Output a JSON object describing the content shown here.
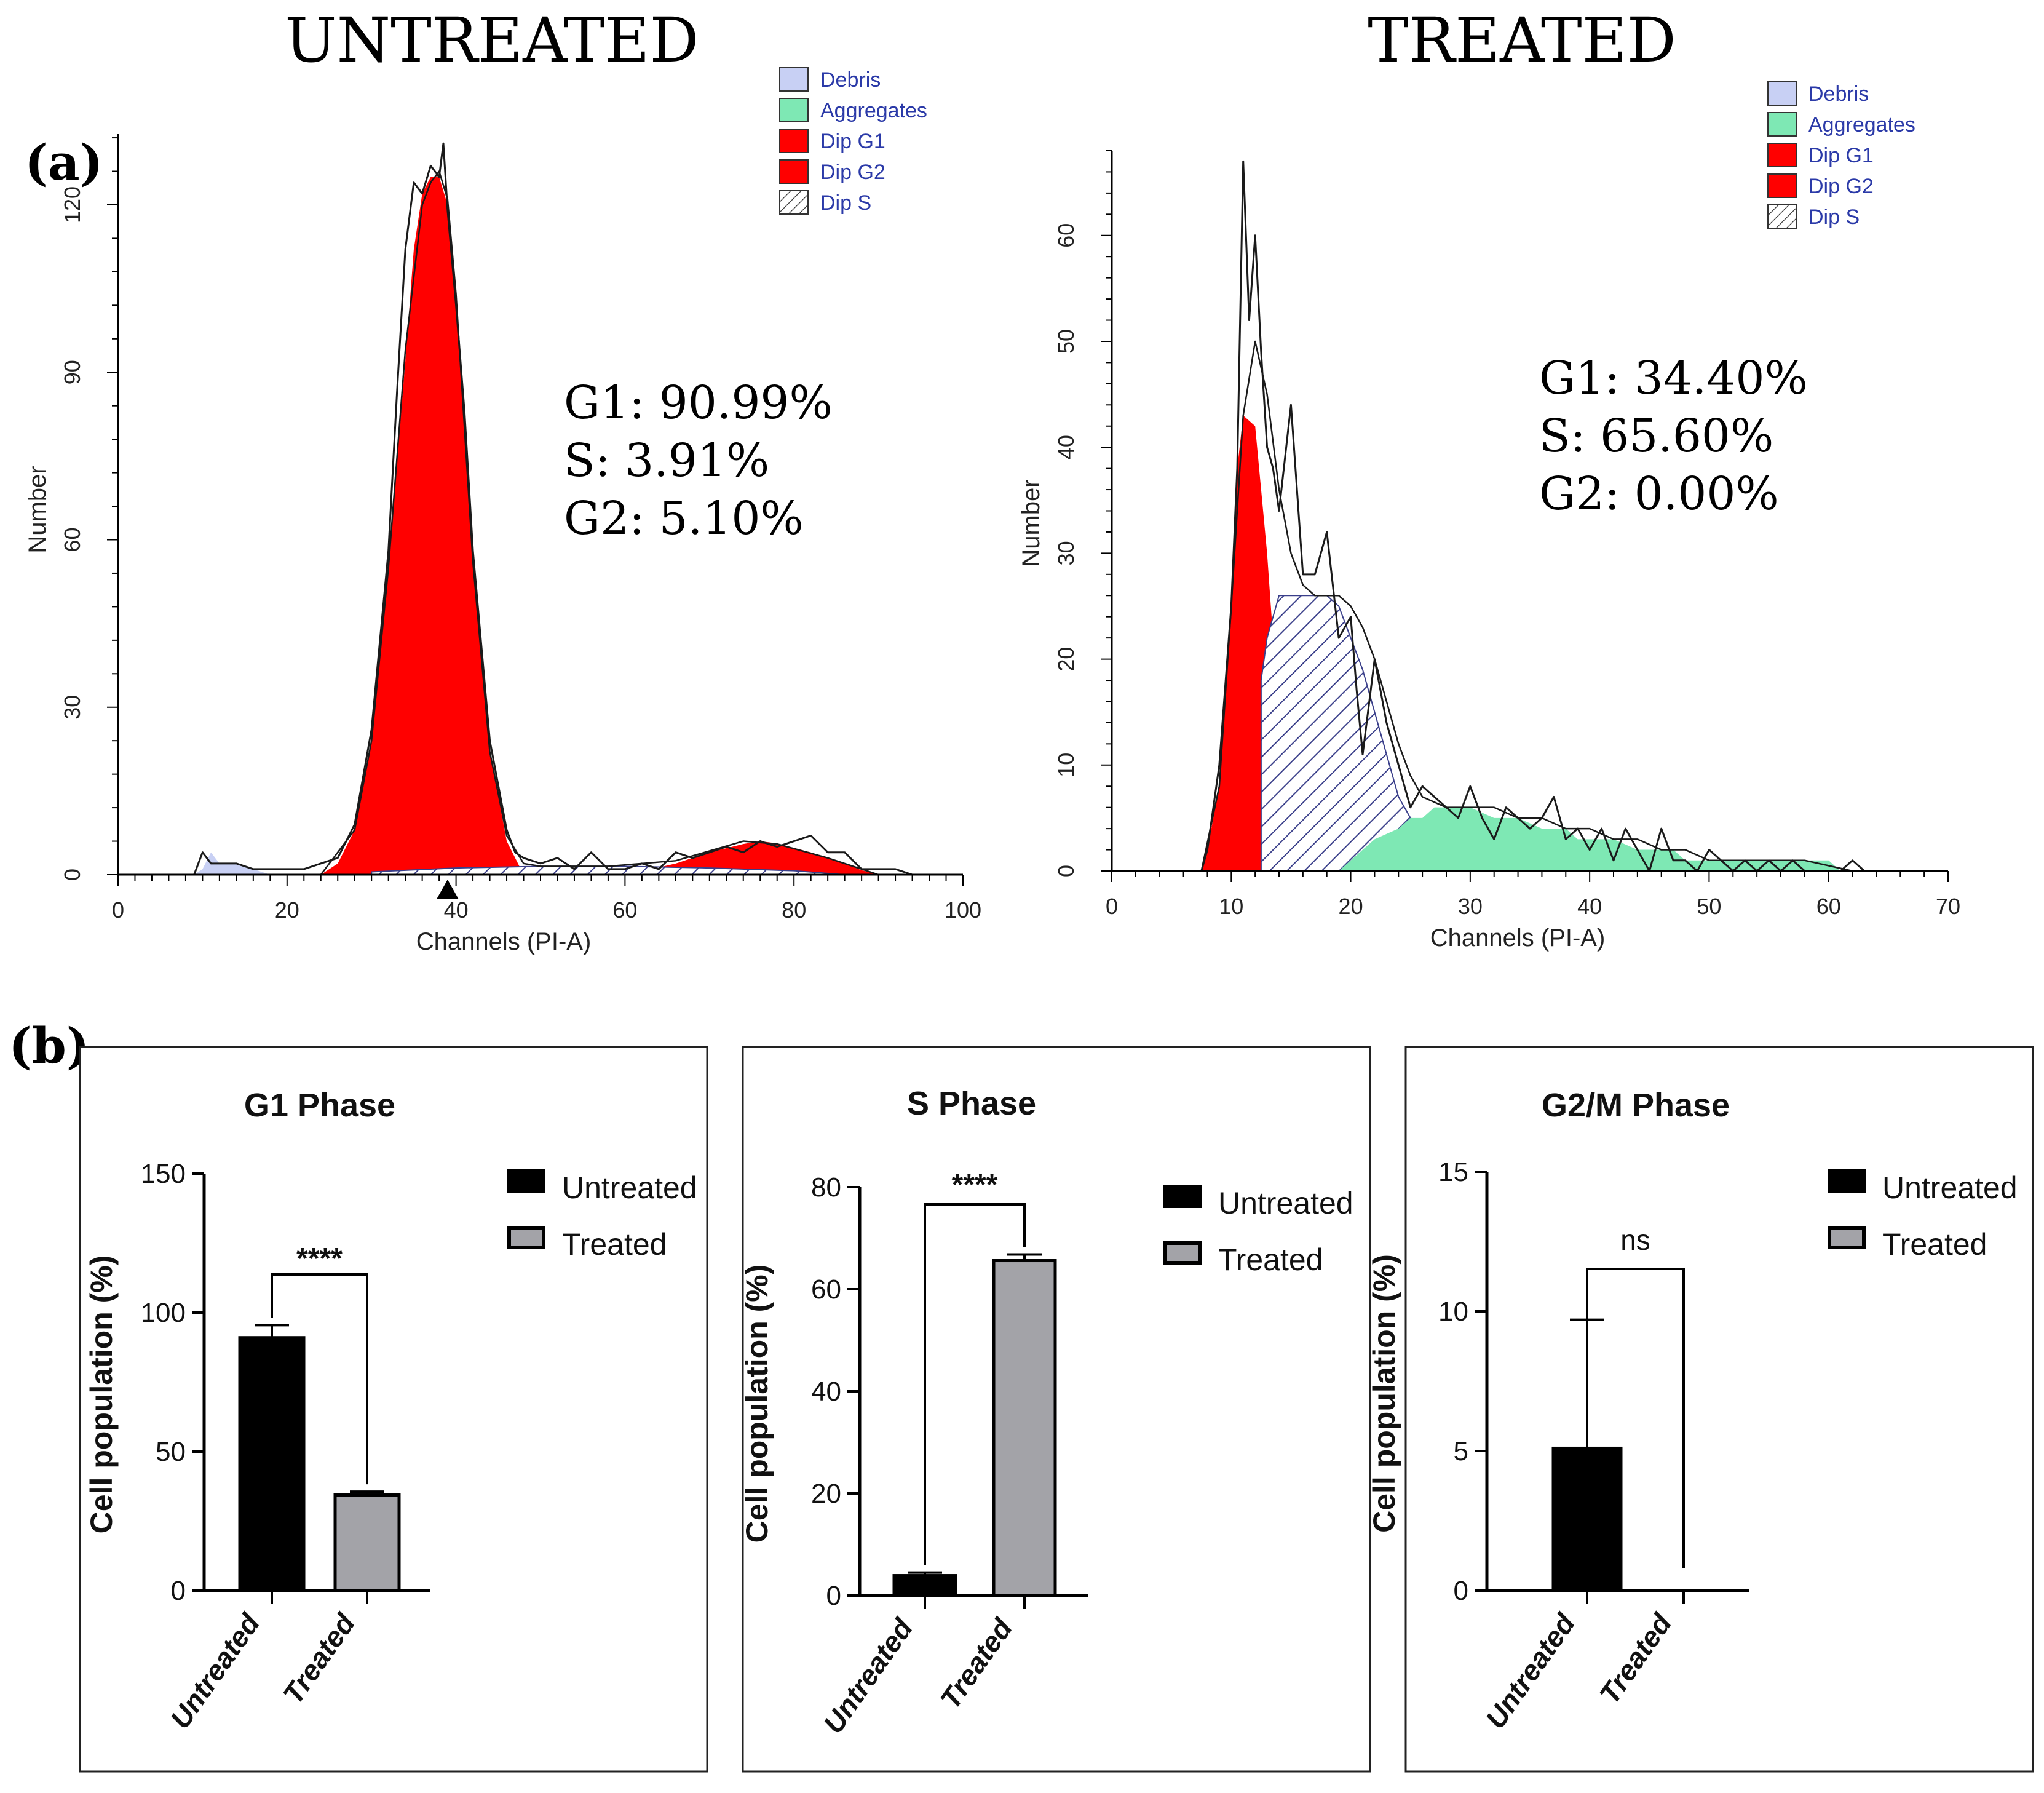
{
  "panel_labels": {
    "a": "(a)",
    "b": "(b)"
  },
  "colors": {
    "debris": "#c8d0f4",
    "aggregates": "#7ee8b4",
    "dip_g1": "#ff0000",
    "dip_g2": "#ff0000",
    "dip_s_hatch": "#3a3f8a",
    "legend_text": "#2b3aa8",
    "bar_untreated": "#000000",
    "bar_treated": "#a3a3a8"
  },
  "chart_data": [
    {
      "id": "untreated-histogram",
      "type": "area",
      "title": "UNTREATED",
      "xlabel": "Channels (PI-A)",
      "ylabel": "Number",
      "xlim": [
        0,
        100
      ],
      "ylim": [
        0,
        133
      ],
      "xticks": [
        0,
        20,
        40,
        60,
        80,
        100
      ],
      "yticks": [
        0,
        30,
        60,
        90,
        120
      ],
      "xtick_labels": [
        "0",
        "20",
        "40",
        "60",
        "80",
        "100"
      ],
      "ytick_labels": [
        "0",
        "30",
        "60",
        "90",
        "120"
      ],
      "legend": [
        "Debris",
        "Aggregates",
        "Dip G1",
        "Dip G2",
        "Dip S"
      ],
      "annotations": [
        "G1: 90.99%",
        "S: 3.91%",
        "G2: 5.10%"
      ],
      "marker_channel": 39,
      "series": [
        {
          "name": "Debris",
          "kind": "fill",
          "x": [
            9,
            10,
            11,
            12,
            14,
            16,
            18
          ],
          "y": [
            0,
            1,
            4,
            2,
            2,
            1,
            0
          ]
        },
        {
          "name": "Dip G1",
          "kind": "fill",
          "x": [
            24,
            26,
            28,
            30,
            32,
            34,
            35,
            36,
            37,
            38,
            39,
            40,
            41,
            42,
            44,
            46,
            48
          ],
          "y": [
            0,
            2,
            8,
            24,
            55,
            92,
            112,
            122,
            125,
            125,
            120,
            103,
            82,
            55,
            22,
            6,
            0
          ]
        },
        {
          "name": "Dip G2",
          "kind": "fill",
          "x": [
            58,
            62,
            66,
            70,
            74,
            76,
            78,
            82,
            86,
            88,
            90
          ],
          "y": [
            0,
            0.6,
            2,
            4,
            5.5,
            6,
            5.6,
            4,
            2,
            0.8,
            0
          ]
        },
        {
          "name": "Dip S",
          "kind": "fill",
          "x": [
            30,
            40,
            50,
            60,
            70,
            80,
            86
          ],
          "y": [
            0.5,
            1.2,
            1.5,
            1.5,
            1.2,
            0.7,
            0
          ]
        },
        {
          "name": "Data",
          "kind": "line",
          "x": [
            0,
            9,
            10,
            11,
            12,
            14,
            16,
            18,
            20,
            22,
            24,
            26,
            28,
            30,
            32,
            33,
            34,
            35,
            36,
            37,
            38,
            38.5,
            39,
            40,
            41,
            42,
            44,
            46,
            47,
            48,
            50,
            52,
            54,
            56,
            58,
            60,
            62,
            64,
            66,
            68,
            70,
            72,
            74,
            76,
            78,
            80,
            82,
            84,
            86,
            88,
            90,
            92,
            94,
            95
          ],
          "y": [
            0,
            0,
            4,
            2,
            2,
            2,
            1,
            1,
            1,
            1,
            2,
            3,
            9,
            26,
            58,
            86,
            112,
            124,
            122,
            127,
            125,
            131,
            119,
            102,
            83,
            58,
            24,
            8,
            4,
            3,
            2,
            3,
            1,
            4,
            1,
            1,
            2,
            1,
            4,
            3,
            4,
            5,
            4,
            6,
            5,
            6,
            7,
            4,
            4,
            1,
            1,
            1,
            0,
            0
          ]
        },
        {
          "name": "Model",
          "kind": "line",
          "x": [
            24,
            28,
            30,
            32,
            34,
            36,
            37,
            38,
            39,
            40,
            42,
            44,
            46,
            48,
            50,
            58,
            66,
            74,
            78,
            84,
            90
          ],
          "y": [
            0,
            8,
            24,
            55,
            94,
            120,
            124,
            126,
            121,
            104,
            56,
            22,
            7,
            2,
            1.5,
            1.5,
            2.5,
            6,
            5.5,
            3,
            0
          ]
        }
      ]
    },
    {
      "id": "treated-histogram",
      "type": "area",
      "title": "TREATED",
      "xlabel": "Channels (PI-A)",
      "ylabel": "Number",
      "xlim": [
        0,
        70
      ],
      "ylim": [
        0,
        68
      ],
      "xticks": [
        0,
        10,
        20,
        30,
        40,
        50,
        60,
        70
      ],
      "yticks": [
        0,
        10,
        20,
        30,
        40,
        50,
        60
      ],
      "xtick_labels": [
        "0",
        "10",
        "20",
        "30",
        "40",
        "50",
        "60",
        "70"
      ],
      "ytick_labels": [
        "0",
        "10",
        "20",
        "30",
        "40",
        "50",
        "60"
      ],
      "legend": [
        "Debris",
        "Aggregates",
        "Dip G1",
        "Dip G2",
        "Dip S"
      ],
      "annotations": [
        "G1: 34.40%",
        "S: 65.60%",
        "G2: 0.00%"
      ],
      "series": [
        {
          "name": "Dip G1",
          "kind": "fill",
          "x": [
            7.5,
            8,
            9,
            10,
            10.5,
            11,
            12,
            13,
            14,
            15,
            15.7
          ],
          "y": [
            0,
            2,
            8,
            25,
            38,
            43,
            42,
            30,
            14,
            4,
            0
          ]
        },
        {
          "name": "Dip S",
          "kind": "fill",
          "x": [
            12.5,
            13,
            14,
            14.5,
            15,
            16,
            17,
            18,
            19,
            20,
            21,
            22,
            23,
            24,
            25,
            26
          ],
          "y": [
            18,
            22,
            26,
            26,
            26,
            26,
            26,
            26,
            25,
            22,
            19,
            15,
            11,
            7,
            5,
            4
          ]
        },
        {
          "name": "Aggregates",
          "kind": "fill",
          "x": [
            19,
            20,
            21,
            22,
            24,
            25,
            26,
            27,
            28,
            29,
            30,
            32,
            33,
            34,
            36,
            37,
            38,
            39,
            40,
            42,
            44,
            46,
            47,
            48,
            50,
            52,
            54,
            56,
            57,
            58,
            59,
            60,
            61
          ],
          "y": [
            0,
            1,
            2,
            3,
            4,
            5,
            5,
            6,
            6,
            6,
            6,
            5,
            5,
            5,
            4,
            4,
            4,
            3,
            3,
            3,
            2,
            2,
            2,
            1,
            1,
            1,
            1,
            1,
            1,
            1,
            1,
            1,
            0
          ]
        },
        {
          "name": "Data",
          "kind": "line",
          "x": [
            0,
            7.5,
            8,
            9,
            10,
            10.5,
            11,
            11.5,
            12,
            12.5,
            13,
            13.5,
            14,
            15,
            16,
            17,
            18,
            19,
            20,
            20.5,
            21,
            22,
            23,
            24,
            25,
            26,
            27,
            28,
            29,
            30,
            31,
            32,
            33,
            34,
            35,
            36,
            37,
            38,
            39,
            40,
            41,
            42,
            43,
            44,
            45,
            46,
            47,
            48,
            49,
            50,
            51,
            52,
            53,
            54,
            55,
            56,
            57,
            58,
            59,
            60,
            61,
            62,
            63,
            64,
            65,
            66,
            67,
            68,
            69,
            70
          ],
          "y": [
            0,
            0,
            2,
            10,
            25,
            38,
            67,
            52,
            60,
            49,
            40,
            38,
            34,
            44,
            28,
            28,
            32,
            22,
            24,
            17,
            11,
            20,
            14,
            10,
            6,
            8,
            7,
            6,
            5,
            8,
            5,
            3,
            6,
            5,
            4,
            5,
            7,
            3,
            4,
            2,
            4,
            1,
            4,
            2,
            0,
            4,
            1,
            1,
            0,
            2,
            1,
            0,
            1,
            0,
            1,
            0,
            1,
            0,
            0,
            0,
            0,
            1,
            0,
            0,
            0,
            0,
            0,
            0,
            0,
            0
          ]
        },
        {
          "name": "Model",
          "kind": "line",
          "x": [
            7.5,
            9,
            10,
            11,
            12,
            13,
            14,
            15,
            16,
            17,
            18,
            19,
            20,
            21,
            22,
            23,
            24,
            25,
            26,
            28,
            30,
            32,
            34,
            36,
            38,
            40,
            42,
            44,
            46,
            48,
            50,
            52,
            54,
            56,
            58,
            60,
            62
          ],
          "y": [
            0,
            8,
            25,
            43,
            50,
            45,
            36,
            30,
            27,
            26,
            26,
            26,
            25,
            23,
            20,
            16,
            12,
            9,
            7,
            6,
            6,
            6,
            5,
            5,
            4,
            4,
            3,
            3,
            2,
            2,
            1,
            1,
            1,
            1,
            1,
            0.5,
            0
          ]
        }
      ]
    },
    {
      "id": "g1-phase-bars",
      "type": "bar",
      "title": "G1 Phase",
      "ylabel": "Cell population (%)",
      "categories": [
        "Untreated",
        "Treated"
      ],
      "values": [
        90.99,
        34.4
      ],
      "errors": [
        4.5,
        1.2
      ],
      "ylim": [
        0,
        150
      ],
      "yticks": [
        0,
        50,
        100,
        150
      ],
      "ytick_labels": [
        "0",
        "50",
        "100",
        "150"
      ],
      "legend": [
        "Untreated",
        "Treated"
      ],
      "significance": "****"
    },
    {
      "id": "s-phase-bars",
      "type": "bar",
      "title": "S Phase",
      "ylabel": "Cell population (%)",
      "categories": [
        "Untreated",
        "Treated"
      ],
      "values": [
        3.91,
        65.6
      ],
      "errors": [
        0.6,
        1.2
      ],
      "ylim": [
        0,
        80
      ],
      "yticks": [
        0,
        20,
        40,
        60,
        80
      ],
      "ytick_labels": [
        "0",
        "20",
        "40",
        "60",
        "80"
      ],
      "legend": [
        "Untreated",
        "Treated"
      ],
      "significance": "****"
    },
    {
      "id": "g2m-phase-bars",
      "type": "bar",
      "title": "G2/M Phase",
      "ylabel": "Cell population (%)",
      "categories": [
        "Untreated",
        "Treated"
      ],
      "values": [
        5.1,
        0.0
      ],
      "errors": [
        4.6,
        0
      ],
      "ylim": [
        0,
        15
      ],
      "yticks": [
        0,
        5,
        10,
        15
      ],
      "ytick_labels": [
        "0",
        "5",
        "10",
        "15"
      ],
      "legend": [
        "Untreated",
        "Treated"
      ],
      "significance": "ns"
    }
  ]
}
